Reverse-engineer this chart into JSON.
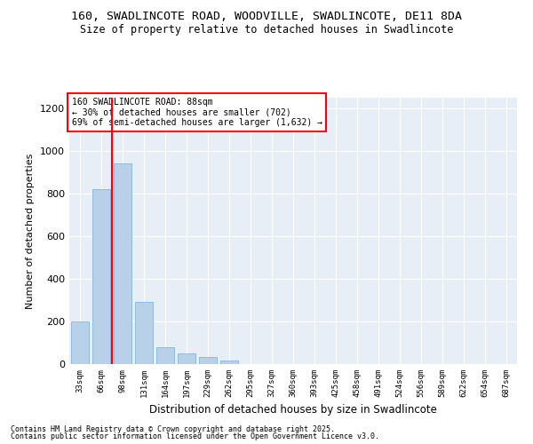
{
  "title": "160, SWADLINCOTE ROAD, WOODVILLE, SWADLINCOTE, DE11 8DA",
  "subtitle": "Size of property relative to detached houses in Swadlincote",
  "xlabel": "Distribution of detached houses by size in Swadlincote",
  "ylabel": "Number of detached properties",
  "bins": [
    "33sqm",
    "66sqm",
    "98sqm",
    "131sqm",
    "164sqm",
    "197sqm",
    "229sqm",
    "262sqm",
    "295sqm",
    "327sqm",
    "360sqm",
    "393sqm",
    "425sqm",
    "458sqm",
    "491sqm",
    "524sqm",
    "556sqm",
    "589sqm",
    "622sqm",
    "654sqm",
    "687sqm"
  ],
  "values": [
    200,
    820,
    940,
    290,
    80,
    50,
    35,
    15,
    0,
    0,
    0,
    0,
    0,
    0,
    0,
    0,
    0,
    0,
    0,
    0,
    0
  ],
  "bar_color": "#b8d0e8",
  "bar_edge_color": "#7aadd4",
  "annotation_title": "160 SWADLINCOTE ROAD: 88sqm",
  "annotation_line2": "← 30% of detached houses are smaller (702)",
  "annotation_line3": "69% of semi-detached houses are larger (1,632) →",
  "ylim": [
    0,
    1250
  ],
  "yticks": [
    0,
    200,
    400,
    600,
    800,
    1000,
    1200
  ],
  "bg_color": "#e8eef5",
  "footnote1": "Contains HM Land Registry data © Crown copyright and database right 2025.",
  "footnote2": "Contains public sector information licensed under the Open Government Licence v3.0."
}
